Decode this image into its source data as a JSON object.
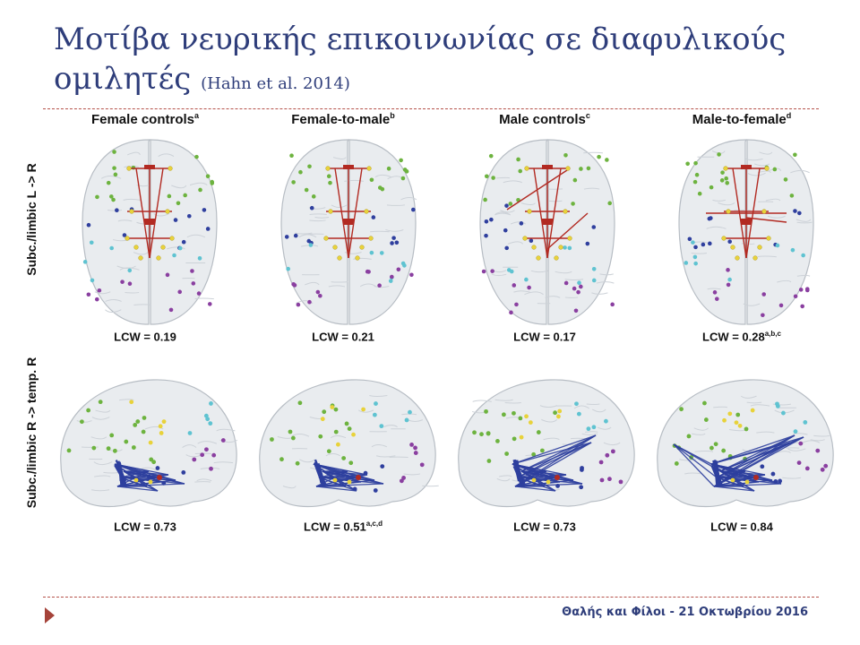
{
  "slide": {
    "title_main": "Μοτίβα νευρικής επικοινωνίας σε διαφυλικούς",
    "title_line2": "ομιλητές",
    "citation": "(Hahn et al. 2014)",
    "footer": "Θαλής και Φίλοι - 21 Οκτωβρίου 2016"
  },
  "figure": {
    "columns": [
      {
        "label": "Female controls",
        "sup": "a"
      },
      {
        "label": "Female-to-male",
        "sup": "b"
      },
      {
        "label": "Male controls",
        "sup": "c"
      },
      {
        "label": "Male-to-female",
        "sup": "d"
      }
    ],
    "rows": [
      {
        "label": "Subc./limbic L -> R",
        "lcw": [
          {
            "text": "LCW = 0.19",
            "sup": ""
          },
          {
            "text": "LCW = 0.21",
            "sup": ""
          },
          {
            "text": "LCW = 0.17",
            "sup": ""
          },
          {
            "text": "LCW = 0.28",
            "sup": "a,b,c"
          }
        ]
      },
      {
        "label": "Subc./limbic R -> temp. R",
        "lcw": [
          {
            "text": "LCW = 0.73",
            "sup": ""
          },
          {
            "text": "LCW = 0.51",
            "sup": "a,c,d"
          },
          {
            "text": "LCW = 0.73",
            "sup": ""
          },
          {
            "text": "LCW = 0.84",
            "sup": ""
          }
        ]
      }
    ],
    "colors": {
      "brain_fill": "#e9ecef",
      "brain_stroke": "#b7bdc4",
      "green_node": "#6db33f",
      "yellow_node": "#e8d23a",
      "blue_node": "#2f3f9e",
      "cyan_node": "#5fc3d1",
      "purple_node": "#8a3fa0",
      "red_edge": "#b22a22",
      "blue_edge": "#2d3f9e"
    }
  }
}
